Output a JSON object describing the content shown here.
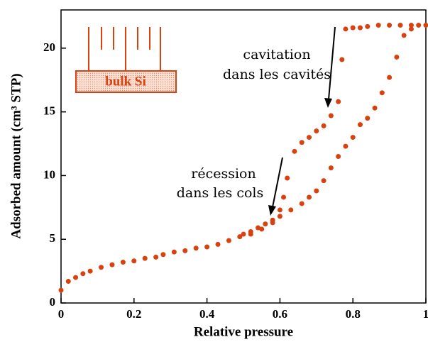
{
  "chart_data": {
    "type": "scatter",
    "xlabel": "Relative pressure",
    "ylabel": "Adsorbed amount (cm³ STP)",
    "annotations": [
      [
        "cavitation",
        "dans les cavités"
      ],
      [
        "récession",
        "dans les cols"
      ]
    ],
    "inset_label": "bulk Si",
    "color": "#d9410f",
    "x": [
      0.0,
      0.02,
      0.04,
      0.06,
      0.08,
      0.11,
      0.14,
      0.17,
      0.2,
      0.23,
      0.26,
      0.28,
      0.31,
      0.34,
      0.37,
      0.4,
      0.43,
      0.46,
      0.49,
      0.52,
      0.55,
      0.58,
      0.6,
      0.63,
      0.66,
      0.68,
      0.7,
      0.72,
      0.74,
      0.76,
      0.78,
      0.8,
      0.82,
      0.84,
      0.86,
      0.88,
      0.9,
      0.92,
      0.94,
      0.96,
      0.98,
      1.0,
      0.96,
      0.93,
      0.9,
      0.87,
      0.84,
      0.82,
      0.8,
      0.78,
      0.77,
      0.76,
      0.74,
      0.72,
      0.7,
      0.68,
      0.66,
      0.64,
      0.62,
      0.61,
      0.6,
      0.58,
      0.56,
      0.54,
      0.52,
      0.5
    ],
    "values": [
      1.0,
      1.7,
      2.0,
      2.3,
      2.5,
      2.8,
      3.0,
      3.2,
      3.3,
      3.5,
      3.6,
      3.8,
      4.0,
      4.1,
      4.3,
      4.4,
      4.6,
      4.9,
      5.2,
      5.4,
      5.8,
      6.3,
      6.8,
      7.3,
      7.8,
      8.3,
      8.8,
      9.6,
      10.6,
      11.5,
      12.3,
      13.0,
      14.0,
      14.5,
      15.3,
      16.5,
      17.7,
      19.3,
      21.0,
      21.5,
      21.8,
      21.8,
      21.8,
      21.8,
      21.8,
      21.8,
      21.7,
      21.6,
      21.6,
      21.5,
      19.1,
      15.8,
      14.7,
      13.9,
      13.5,
      13.0,
      12.6,
      11.9,
      9.8,
      8.3,
      7.3,
      6.5,
      6.2,
      5.9,
      5.6,
      5.4
    ],
    "xlim": [
      0,
      1
    ],
    "ylim": [
      0,
      23
    ],
    "xticks": [
      0,
      0.2,
      0.4,
      0.6,
      0.8,
      1
    ],
    "yticks": [
      0,
      5,
      10,
      15,
      20
    ]
  }
}
